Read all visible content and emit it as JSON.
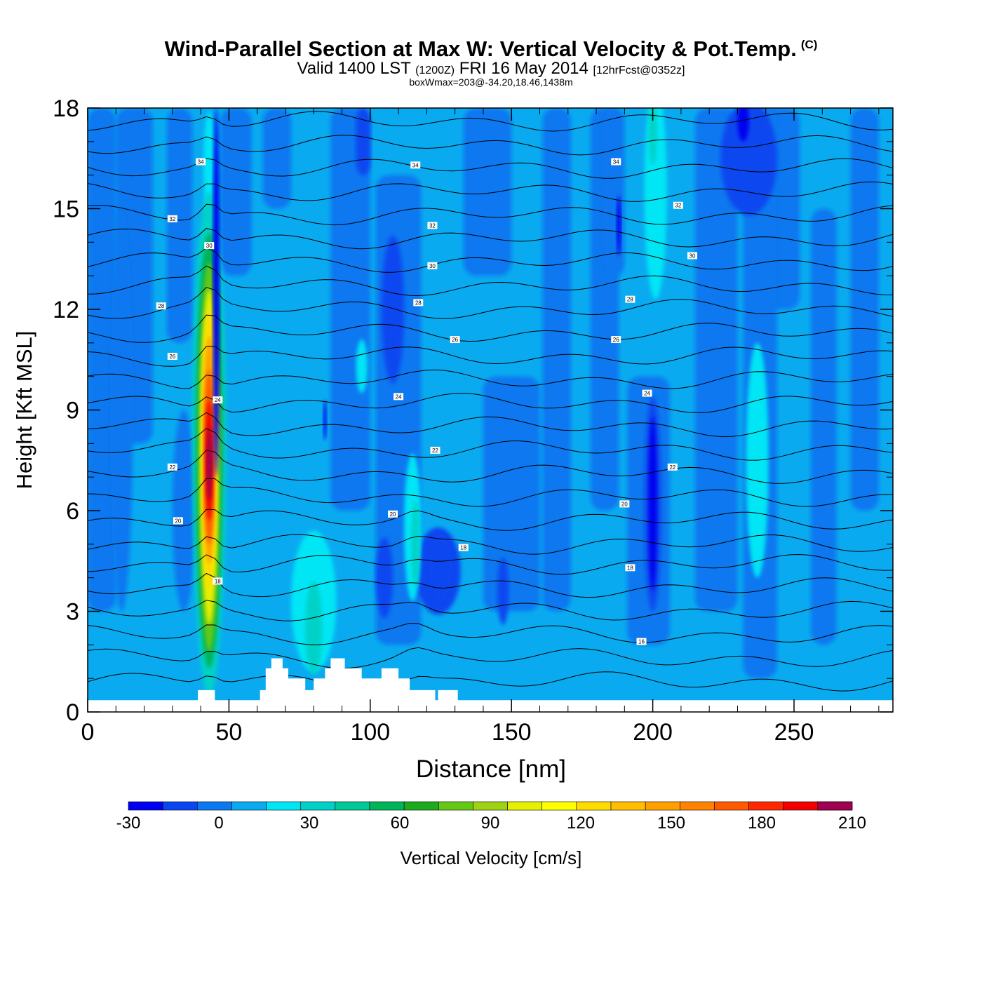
{
  "chart_data": {
    "type": "contour-cross-section",
    "title": "Wind-Parallel Section at Max W: Vertical Velocity & Pot.Temp.",
    "title_mark": "(C)",
    "subtitle_main": "Valid 1400 LST",
    "subtitle_utc": "(1200Z)",
    "subtitle_date": "FRI 16 May 2014",
    "subtitle_fcst": "[12hrFcst@0352z]",
    "subsubtitle": "boxWmax=203@-34.20,18.46,1438m",
    "xlabel": "Distance [nm]",
    "ylabel": "Height [Kft MSL]",
    "xlim": [
      0,
      285
    ],
    "ylim": [
      0,
      18
    ],
    "x_ticks": [
      0,
      50,
      100,
      150,
      200,
      250
    ],
    "y_ticks": [
      0,
      3,
      6,
      9,
      12,
      15,
      18
    ],
    "colorbar": {
      "label": "Vertical Velocity [cm/s]",
      "min": -30,
      "max": 210,
      "step": 10,
      "tick_labels": [
        -30,
        0,
        30,
        60,
        90,
        120,
        150,
        180,
        210
      ],
      "colors": [
        "#0000f0",
        "#0a46f0",
        "#0a78f0",
        "#0aaaf0",
        "#00e6f5",
        "#00d2c8",
        "#00c896",
        "#00b45a",
        "#1eaa1e",
        "#64c814",
        "#a0d214",
        "#e6f000",
        "#ffff00",
        "#ffdc00",
        "#ffbe00",
        "#ffa000",
        "#ff8200",
        "#ff5a00",
        "#ff2800",
        "#f00000",
        "#c80028",
        "#a00050"
      ]
    },
    "w_max": {
      "value": 203,
      "x_nm": 43,
      "height_kft": 7.5
    },
    "w_field_features": [
      {
        "name": "core updraft",
        "x_nm": 43,
        "height_kft": [
          2,
          13
        ],
        "peak_cm_s": 203
      },
      {
        "name": "weak updraft",
        "x_nm": 80,
        "height_kft": [
          1,
          5
        ],
        "peak_cm_s": 30
      },
      {
        "name": "weak updraft",
        "x_nm": 115,
        "height_kft": [
          3,
          7
        ],
        "peak_cm_s": 30
      },
      {
        "name": "weak updraft",
        "x_nm": 237,
        "height_kft": [
          5,
          11
        ],
        "peak_cm_s": 20
      },
      {
        "name": "weak updraft",
        "x_nm": 200,
        "height_kft": [
          12,
          18
        ],
        "peak_cm_s": 20
      },
      {
        "name": "downdraft",
        "x_nm": 200,
        "height_kft": [
          3,
          9
        ],
        "peak_cm_s": -25
      },
      {
        "name": "downdraft",
        "x_nm": 110,
        "height_kft": [
          10,
          14
        ],
        "peak_cm_s": -20
      },
      {
        "name": "downdraft",
        "x_nm": 125,
        "height_kft": [
          3,
          5.5
        ],
        "peak_cm_s": -20
      }
    ],
    "theta_contours_kft": [
      0.9,
      1.6,
      2.3,
      3.0,
      3.7,
      4.4,
      5.0,
      5.7,
      6.4,
      7.1,
      7.8,
      8.5,
      9.2,
      9.9,
      10.6,
      11.3,
      12.0,
      12.7,
      13.4,
      14.1,
      14.8,
      15.5,
      16.2,
      16.9,
      17.6
    ],
    "theta_labels": [
      {
        "text": "34",
        "x_nm": 40,
        "h": 16.4
      },
      {
        "text": "34",
        "x_nm": 116,
        "h": 16.3
      },
      {
        "text": "34",
        "x_nm": 187,
        "h": 16.4
      },
      {
        "text": "32",
        "x_nm": 30,
        "h": 14.7
      },
      {
        "text": "32",
        "x_nm": 122,
        "h": 14.5
      },
      {
        "text": "32",
        "x_nm": 209,
        "h": 15.1
      },
      {
        "text": "30",
        "x_nm": 43,
        "h": 13.9
      },
      {
        "text": "30",
        "x_nm": 122,
        "h": 13.3
      },
      {
        "text": "30",
        "x_nm": 214,
        "h": 13.6
      },
      {
        "text": "28",
        "x_nm": 26,
        "h": 12.1
      },
      {
        "text": "28",
        "x_nm": 117,
        "h": 12.2
      },
      {
        "text": "28",
        "x_nm": 192,
        "h": 12.3
      },
      {
        "text": "26",
        "x_nm": 30,
        "h": 10.6
      },
      {
        "text": "26",
        "x_nm": 130,
        "h": 11.1
      },
      {
        "text": "26",
        "x_nm": 187,
        "h": 11.1
      },
      {
        "text": "24",
        "x_nm": 46,
        "h": 9.3
      },
      {
        "text": "24",
        "x_nm": 110,
        "h": 9.4
      },
      {
        "text": "24",
        "x_nm": 198,
        "h": 9.5
      },
      {
        "text": "22",
        "x_nm": 30,
        "h": 7.3
      },
      {
        "text": "22",
        "x_nm": 123,
        "h": 7.8
      },
      {
        "text": "22",
        "x_nm": 207,
        "h": 7.3
      },
      {
        "text": "20",
        "x_nm": 32,
        "h": 5.7
      },
      {
        "text": "20",
        "x_nm": 108,
        "h": 5.9
      },
      {
        "text": "20",
        "x_nm": 190,
        "h": 6.2
      },
      {
        "text": "18",
        "x_nm": 133,
        "h": 4.9
      },
      {
        "text": "18",
        "x_nm": 192,
        "h": 4.3
      },
      {
        "text": "18",
        "x_nm": 46,
        "h": 3.9
      },
      {
        "text": "16",
        "x_nm": 196,
        "h": 2.1
      }
    ],
    "terrain_kft": [
      [
        0,
        0.35
      ],
      [
        39,
        0.35
      ],
      [
        39,
        0.65
      ],
      [
        45,
        0.65
      ],
      [
        45,
        0.35
      ],
      [
        61,
        0.35
      ],
      [
        61,
        0.65
      ],
      [
        63,
        0.65
      ],
      [
        63,
        1.3
      ],
      [
        65,
        1.3
      ],
      [
        65,
        1.6
      ],
      [
        69,
        1.6
      ],
      [
        69,
        1.3
      ],
      [
        71,
        1.3
      ],
      [
        71,
        1.0
      ],
      [
        77,
        1.0
      ],
      [
        77,
        0.65
      ],
      [
        80,
        0.65
      ],
      [
        80,
        1.0
      ],
      [
        84,
        1.0
      ],
      [
        84,
        1.3
      ],
      [
        86,
        1.3
      ],
      [
        86,
        1.6
      ],
      [
        91,
        1.6
      ],
      [
        91,
        1.3
      ],
      [
        97,
        1.3
      ],
      [
        97,
        1.0
      ],
      [
        104,
        1.0
      ],
      [
        104,
        1.3
      ],
      [
        110,
        1.3
      ],
      [
        110,
        1.0
      ],
      [
        114,
        1.0
      ],
      [
        114,
        0.65
      ],
      [
        123,
        0.65
      ],
      [
        123,
        0.35
      ],
      [
        124,
        0.35
      ],
      [
        124,
        0.65
      ],
      [
        131,
        0.65
      ],
      [
        131,
        0.35
      ],
      [
        285,
        0.35
      ]
    ]
  }
}
